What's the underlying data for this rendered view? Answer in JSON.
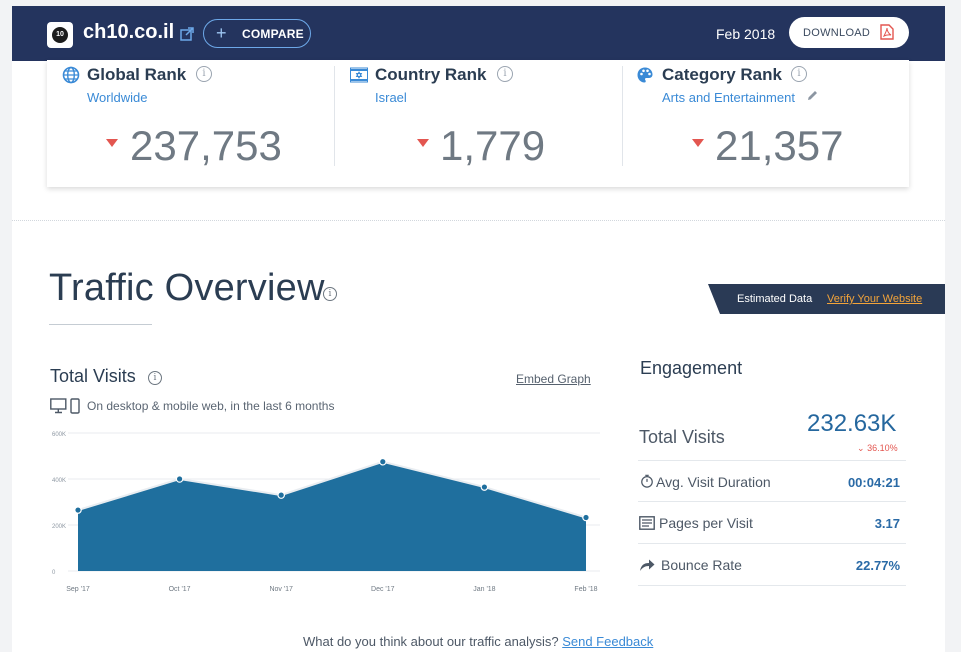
{
  "header": {
    "site_name": "ch10.co.il",
    "logo_text": "10",
    "compare_label": "COMPARE",
    "date": "Feb 2018",
    "download_label": "DOWNLOAD"
  },
  "ranks": [
    {
      "title": "Global Rank",
      "sub": "Worldwide",
      "value": "237,753",
      "icon": "globe-icon"
    },
    {
      "title": "Country Rank",
      "sub": "Israel",
      "value": "1,779",
      "icon": "israel-flag-icon"
    },
    {
      "title": "Category Rank",
      "sub": "Arts and Entertainment",
      "value": "21,357",
      "icon": "palette-icon"
    }
  ],
  "traffic_overview": {
    "title": "Traffic Overview",
    "estimated_label": "Estimated Data",
    "verify_link": "Verify Your Website"
  },
  "total_visits": {
    "title": "Total Visits",
    "embed_link": "Embed Graph",
    "device_note": "On desktop & mobile web, in the last 6 months"
  },
  "chart_data": {
    "type": "area",
    "categories": [
      "Sep '17",
      "Oct '17",
      "Nov '17",
      "Dec '17",
      "Jan '18",
      "Feb '18"
    ],
    "values": [
      265000,
      400000,
      330000,
      475000,
      365000,
      232630
    ],
    "y_ticks": [
      "0",
      "200K",
      "400K",
      "600K"
    ],
    "ylim": [
      0,
      600000
    ],
    "grid": true,
    "color": "#1f6f9e"
  },
  "engagement": {
    "title": "Engagement",
    "total_visits_label": "Total Visits",
    "total_visits_value": "232.63K",
    "total_visits_change": "36.10%",
    "rows": [
      {
        "label": "Avg. Visit Duration",
        "value": "00:04:21",
        "icon": "stopwatch-icon"
      },
      {
        "label": "Pages per Visit",
        "value": "3.17",
        "icon": "pages-icon"
      },
      {
        "label": "Bounce Rate",
        "value": "22.77%",
        "icon": "bounce-arrow-icon"
      }
    ]
  },
  "feedback": {
    "question": "What do you think about our traffic analysis?",
    "link": "Send Feedback"
  },
  "colors": {
    "header_bg": "#24345e",
    "accent_blue": "#3a8ad6",
    "decline_red": "#e35650",
    "estimated_bg": "#2a3a55",
    "link_orange": "#f3a43a"
  }
}
